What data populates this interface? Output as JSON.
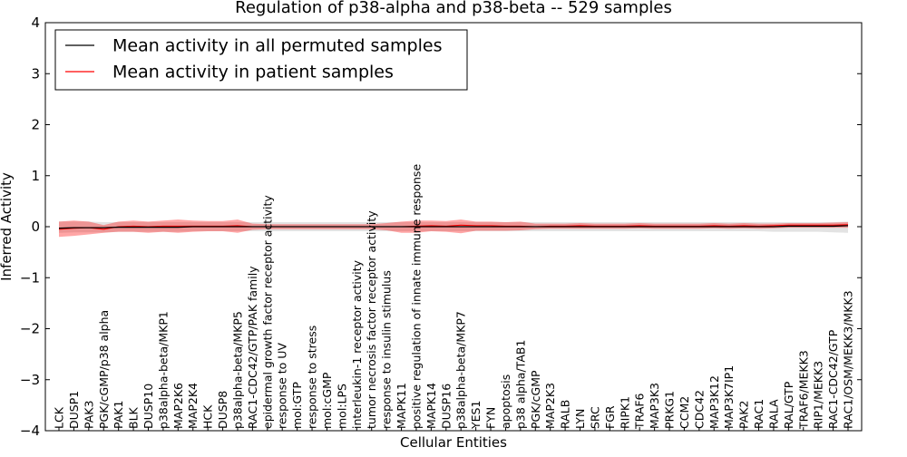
{
  "chart_data": {
    "type": "line",
    "title": "Regulation of p38-alpha and p38-beta -- 529 samples",
    "xlabel": "Cellular Entities",
    "ylabel": "Inferred Activity",
    "ylim": [
      -4,
      4
    ],
    "yticks": [
      4,
      3,
      2,
      1,
      0,
      -1,
      -2,
      -3,
      -4
    ],
    "ytick_labels": [
      "4",
      "3",
      "2",
      "1",
      "0",
      "−1",
      "−2",
      "−3",
      "−4"
    ],
    "legend_position": "top-left",
    "categories": [
      "LCK",
      "DUSP1",
      "PAK3",
      "PGK/cGMP/p38 alpha",
      "PAK1",
      "BLK",
      "DUSP10",
      "p38alpha-beta/MKP1",
      "MAP2K6",
      "MAP2K4",
      "HCK",
      "DUSP8",
      "p38alpha-beta/MKP5",
      "RAC1-CDC42/GTP/PAK family",
      "epidermal growth factor receptor activity",
      "response to UV",
      "mol:GTP",
      "response to stress",
      "mol:cGMP",
      "mol:LPS",
      "interleukin-1 receptor activity",
      "tumor necrosis factor receptor activity",
      "response to insulin stimulus",
      "MAPK11",
      "positive regulation of innate immune response",
      "MAPK14",
      "DUSP16",
      "p38alpha-beta/MKP7",
      "YES1",
      "FYN",
      "apoptosis",
      "p38 alpha/TAB1",
      "PGK/cGMP",
      "MAP2K3",
      "RALB",
      "LYN",
      "SRC",
      "FGR",
      "RIPK1",
      "TRAF6",
      "MAP3K3",
      "PRKG1",
      "CCM2",
      "CDC42",
      "MAP3K12",
      "MAP3K7IP1",
      "PAK2",
      "RAC1",
      "RALA",
      "RAL/GTP",
      "TRAF6/MEKK3",
      "RIP1/MEKK3",
      "RAC1-CDC42/GTP",
      "RAC1/OSM/MEKK3/MKK3"
    ],
    "series": [
      {
        "name": "Mean activity in all permuted samples",
        "color": "#000000",
        "values": [
          -0.03,
          -0.02,
          -0.02,
          -0.02,
          -0.01,
          -0.01,
          -0.01,
          -0.01,
          -0.01,
          0.0,
          0.0,
          0.0,
          0.0,
          0.0,
          0.0,
          0.0,
          0.0,
          0.0,
          0.0,
          0.0,
          0.0,
          0.0,
          0.0,
          0.0,
          0.0,
          0.0,
          0.0,
          0.0,
          0.0,
          0.0,
          0.0,
          0.0,
          0.0,
          0.0,
          0.0,
          0.0,
          0.0,
          0.0,
          0.0,
          0.0,
          0.0,
          0.0,
          0.0,
          0.0,
          0.0,
          0.0,
          0.0,
          0.0,
          0.0,
          0.01,
          0.01,
          0.01,
          0.01,
          0.02
        ],
        "band_upper": [
          0.1,
          0.1,
          0.1,
          0.09,
          0.09,
          0.09,
          0.09,
          0.09,
          0.09,
          0.09,
          0.09,
          0.09,
          0.09,
          0.09,
          0.09,
          0.09,
          0.09,
          0.09,
          0.09,
          0.09,
          0.09,
          0.09,
          0.09,
          0.09,
          0.09,
          0.09,
          0.09,
          0.09,
          0.09,
          0.09,
          0.09,
          0.09,
          0.09,
          0.09,
          0.09,
          0.09,
          0.09,
          0.09,
          0.09,
          0.09,
          0.09,
          0.09,
          0.09,
          0.09,
          0.09,
          0.09,
          0.09,
          0.09,
          0.09,
          0.09,
          0.09,
          0.09,
          0.09,
          0.1
        ],
        "band_lower": [
          -0.12,
          -0.11,
          -0.11,
          -0.11,
          -0.1,
          -0.1,
          -0.1,
          -0.1,
          -0.1,
          -0.09,
          -0.09,
          -0.09,
          -0.09,
          -0.09,
          -0.09,
          -0.09,
          -0.09,
          -0.09,
          -0.09,
          -0.09,
          -0.09,
          -0.09,
          -0.09,
          -0.09,
          -0.09,
          -0.09,
          -0.09,
          -0.09,
          -0.09,
          -0.09,
          -0.09,
          -0.09,
          -0.09,
          -0.09,
          -0.09,
          -0.09,
          -0.09,
          -0.09,
          -0.09,
          -0.09,
          -0.09,
          -0.09,
          -0.09,
          -0.09,
          -0.09,
          -0.09,
          -0.09,
          -0.09,
          -0.1,
          -0.1,
          -0.1,
          -0.1,
          -0.11,
          -0.12
        ],
        "band_color": "#cccccc"
      },
      {
        "name": "Mean activity in patient samples",
        "color": "#ff0000",
        "values": [
          -0.05,
          -0.03,
          -0.02,
          -0.05,
          0.0,
          0.01,
          0.0,
          0.01,
          0.01,
          0.01,
          0.01,
          0.01,
          0.02,
          0.0,
          0.0,
          0.0,
          0.0,
          0.0,
          0.0,
          0.0,
          0.0,
          0.0,
          0.0,
          0.0,
          0.01,
          0.02,
          0.01,
          0.03,
          0.02,
          0.02,
          0.01,
          0.01,
          0.0,
          0.01,
          0.01,
          0.02,
          0.01,
          0.01,
          0.01,
          0.02,
          0.01,
          0.01,
          0.01,
          0.01,
          0.02,
          0.01,
          0.02,
          0.01,
          0.02,
          0.03,
          0.03,
          0.03,
          0.03,
          0.04
        ],
        "band_upper": [
          0.1,
          0.12,
          0.1,
          0.03,
          0.1,
          0.12,
          0.1,
          0.12,
          0.14,
          0.12,
          0.11,
          0.11,
          0.14,
          0.06,
          0.05,
          0.05,
          0.05,
          0.05,
          0.05,
          0.05,
          0.05,
          0.05,
          0.07,
          0.1,
          0.12,
          0.12,
          0.11,
          0.14,
          0.1,
          0.1,
          0.09,
          0.1,
          0.06,
          0.06,
          0.06,
          0.07,
          0.06,
          0.06,
          0.06,
          0.07,
          0.06,
          0.06,
          0.06,
          0.06,
          0.07,
          0.06,
          0.07,
          0.06,
          0.06,
          0.07,
          0.07,
          0.07,
          0.08,
          0.09
        ],
        "band_lower": [
          -0.2,
          -0.18,
          -0.15,
          -0.12,
          -0.1,
          -0.1,
          -0.12,
          -0.1,
          -0.12,
          -0.1,
          -0.09,
          -0.09,
          -0.12,
          -0.06,
          -0.05,
          -0.05,
          -0.05,
          -0.05,
          -0.05,
          -0.05,
          -0.05,
          -0.05,
          -0.07,
          -0.12,
          -0.12,
          -0.09,
          -0.1,
          -0.13,
          -0.08,
          -0.08,
          -0.08,
          -0.07,
          -0.05,
          -0.04,
          -0.04,
          -0.04,
          -0.04,
          -0.04,
          -0.04,
          -0.03,
          -0.04,
          -0.04,
          -0.04,
          -0.04,
          -0.03,
          -0.04,
          -0.03,
          -0.04,
          -0.03,
          -0.02,
          -0.02,
          -0.02,
          -0.02,
          -0.02
        ],
        "band_color": "#ff0000"
      }
    ]
  }
}
